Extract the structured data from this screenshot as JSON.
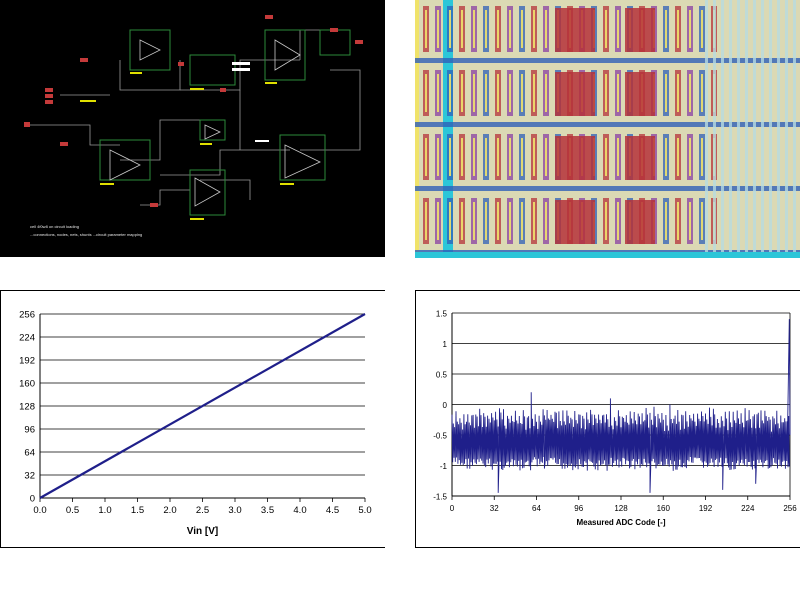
{
  "schematic": {
    "notes": [
      "cell 4f0w8 on circuit loading",
      "...connections, nodes, nets, shunts ...circuit parameter mapping"
    ]
  },
  "layout": {
    "colors": {
      "background": "#dbd9b4",
      "metal_red": "#b5313a",
      "metal_blue": "#2f5fb8",
      "metal_purple": "#8a3fa3",
      "cyan": "#2cc6d8",
      "yellow": "#f0e36a"
    }
  },
  "chart_data": [
    {
      "type": "line",
      "title": "",
      "xlabel": "Vin [V]",
      "ylabel": "",
      "xlim": [
        0,
        5
      ],
      "ylim": [
        0,
        256
      ],
      "x_ticks": [
        "0.0",
        "0.5",
        "1.0",
        "1.5",
        "2.0",
        "2.5",
        "3.0",
        "3.5",
        "4.0",
        "4.5",
        "5.0"
      ],
      "y_ticks": [
        "0",
        "32",
        "64",
        "96",
        "128",
        "160",
        "192",
        "224",
        "256"
      ],
      "grid": "horizontal",
      "color": "#1f1f8a",
      "series": [
        {
          "x": [
            0,
            5
          ],
          "y": [
            0,
            256
          ]
        }
      ]
    },
    {
      "type": "line",
      "title": "",
      "xlabel": "Measured ADC Code [-]",
      "ylabel": "",
      "xlim": [
        0,
        256
      ],
      "ylim": [
        -1.5,
        1.5
      ],
      "x_ticks": [
        "0",
        "32",
        "64",
        "96",
        "128",
        "160",
        "192",
        "224",
        "256"
      ],
      "y_ticks": [
        "1.5",
        "1",
        "0.5",
        "0",
        "-0.5",
        "-1",
        "-1.5"
      ],
      "grid": "horizontal",
      "color": "#1f1f8a",
      "description_pattern": "sawtooth error, approx -0.5 to 0 with spikes to about -1 and -1.4, rising to +1.4 at code 256",
      "series": [
        {
          "name": "",
          "trend_start": [
            -0.5,
            -1.0
          ],
          "trend_end": [
            -0.55,
            -1.05
          ],
          "end_spike": 1.4
        }
      ]
    }
  ]
}
